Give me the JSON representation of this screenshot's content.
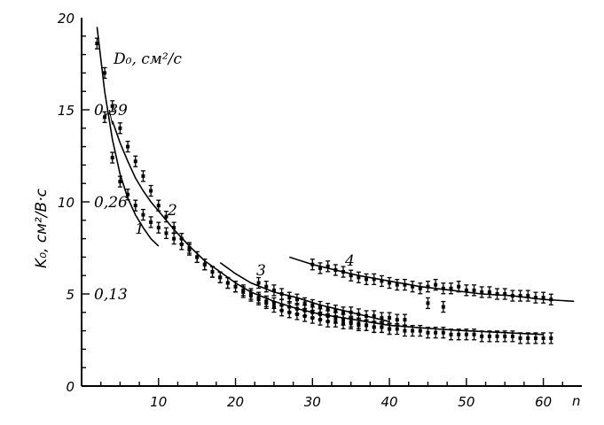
{
  "chart_data": {
    "type": "scatter",
    "xlabel": "n",
    "ylabel": "K₀, см²/В·с",
    "y2label": "D₀, см²/с",
    "xlim": [
      0,
      65
    ],
    "ylim": [
      0,
      20
    ],
    "x_ticks": [
      "10",
      "20",
      "30",
      "40",
      "50",
      "60"
    ],
    "y_ticks": [
      "0",
      "5",
      "10",
      "15",
      "20"
    ],
    "y2_ticks": [
      "0,13",
      "0,26",
      "0,39"
    ],
    "grid": false,
    "series": [
      {
        "name": "1",
        "x": [
          2,
          3,
          4,
          5,
          6,
          7,
          8,
          9,
          10,
          11,
          12,
          13,
          14,
          15,
          16,
          17,
          18,
          19,
          20,
          21,
          22,
          23,
          24,
          25,
          26,
          27,
          28,
          29,
          30,
          31,
          32,
          33,
          34,
          35,
          36,
          37,
          38,
          39,
          40,
          41,
          42,
          43,
          44,
          45,
          46,
          47,
          48,
          49,
          50,
          51,
          52,
          53,
          54,
          55,
          56,
          57,
          58,
          59,
          60,
          61
        ],
        "y": [
          18.6,
          14.6,
          12.4,
          11.1,
          10.4,
          9.8,
          9.3,
          8.9,
          8.6,
          8.3,
          8.0,
          7.7,
          7.4,
          7.0,
          6.6,
          6.2,
          5.9,
          5.6,
          5.4,
          5.1,
          4.9,
          4.7,
          4.5,
          4.3,
          4.1,
          4.0,
          3.9,
          3.8,
          3.7,
          3.6,
          3.5,
          3.5,
          3.4,
          3.4,
          3.3,
          3.3,
          3.2,
          3.2,
          3.1,
          3.1,
          3.0,
          3.0,
          3.0,
          2.9,
          2.9,
          2.9,
          2.8,
          2.8,
          2.8,
          2.8,
          2.7,
          2.7,
          2.7,
          2.7,
          2.7,
          2.6,
          2.6,
          2.6,
          2.6,
          2.6
        ]
      },
      {
        "name": "2",
        "x": [
          3,
          4,
          5,
          6,
          7,
          8,
          9,
          10,
          11,
          12,
          13,
          14,
          15,
          16,
          17,
          18,
          19,
          20,
          21,
          22,
          23,
          24,
          25,
          26,
          27,
          28,
          29,
          30,
          31,
          32,
          33,
          34,
          35,
          36,
          37,
          38,
          39,
          40
        ],
        "y": [
          17.0,
          15.2,
          14.0,
          13.0,
          12.2,
          11.4,
          10.6,
          9.8,
          9.2,
          8.6,
          8.0,
          7.5,
          7.0,
          6.6,
          6.2,
          5.9,
          5.6,
          5.4,
          5.2,
          5.0,
          4.8,
          4.6,
          4.5,
          4.4,
          4.3,
          4.2,
          4.1,
          4.0,
          3.9,
          3.8,
          3.7,
          3.6,
          3.5,
          3.4,
          3.3,
          3.2,
          3.2,
          3.1
        ]
      },
      {
        "name": "3",
        "x": [
          23,
          24,
          25,
          26,
          27,
          28,
          29,
          30,
          31,
          32,
          33,
          34,
          35,
          36,
          37,
          38,
          39,
          40,
          41,
          42,
          45,
          47
        ],
        "y": [
          5.6,
          5.4,
          5.2,
          5.0,
          4.8,
          4.7,
          4.5,
          4.4,
          4.3,
          4.2,
          4.1,
          4.0,
          4.0,
          3.9,
          3.8,
          3.8,
          3.7,
          3.7,
          3.6,
          3.6,
          4.5,
          4.3
        ]
      },
      {
        "name": "4",
        "x": [
          30,
          31,
          32,
          33,
          34,
          35,
          36,
          37,
          38,
          39,
          40,
          41,
          42,
          43,
          44,
          45,
          46,
          47,
          48,
          49,
          50,
          51,
          52,
          53,
          54,
          55,
          56,
          57,
          58,
          59,
          60,
          61
        ],
        "y": [
          6.6,
          6.4,
          6.5,
          6.3,
          6.2,
          6.0,
          5.9,
          5.8,
          5.8,
          5.7,
          5.6,
          5.5,
          5.5,
          5.4,
          5.3,
          5.4,
          5.5,
          5.3,
          5.3,
          5.4,
          5.2,
          5.2,
          5.1,
          5.1,
          5.0,
          5.0,
          4.9,
          4.9,
          4.9,
          4.8,
          4.8,
          4.7
        ]
      },
      {
        "name": "1-fit",
        "x": [
          2,
          3,
          4,
          5,
          6,
          7,
          8,
          9,
          10
        ],
        "y": [
          19.5,
          16.0,
          13.4,
          11.5,
          10.2,
          9.3,
          8.6,
          8.0,
          7.6
        ]
      },
      {
        "name": "2-fit",
        "x": [
          4,
          5,
          6,
          7,
          8,
          9,
          10,
          11,
          12,
          14,
          16,
          18,
          20,
          22,
          25,
          28,
          31,
          34,
          37,
          40,
          43,
          46,
          50,
          55,
          60
        ],
        "y": [
          14.4,
          13.2,
          12.2,
          11.3,
          10.6,
          10.0,
          9.5,
          9.0,
          8.5,
          7.6,
          6.8,
          6.2,
          5.6,
          5.1,
          4.6,
          4.2,
          3.9,
          3.7,
          3.5,
          3.3,
          3.2,
          3.1,
          3.0,
          2.9,
          2.8
        ]
      },
      {
        "name": "3-fit",
        "x": [
          18,
          20,
          22,
          25,
          28,
          31,
          34,
          37,
          40
        ],
        "y": [
          6.7,
          6.1,
          5.6,
          5.1,
          4.8,
          4.4,
          4.1,
          3.8,
          3.5
        ]
      },
      {
        "name": "4-fit",
        "x": [
          27,
          30,
          33,
          36,
          40,
          44,
          48,
          52,
          56,
          60,
          64
        ],
        "y": [
          7.0,
          6.6,
          6.3,
          6.0,
          5.7,
          5.4,
          5.2,
          5.0,
          4.9,
          4.7,
          4.6
        ]
      }
    ],
    "curve_labels": [
      "1",
      "2",
      "3",
      "4"
    ]
  }
}
